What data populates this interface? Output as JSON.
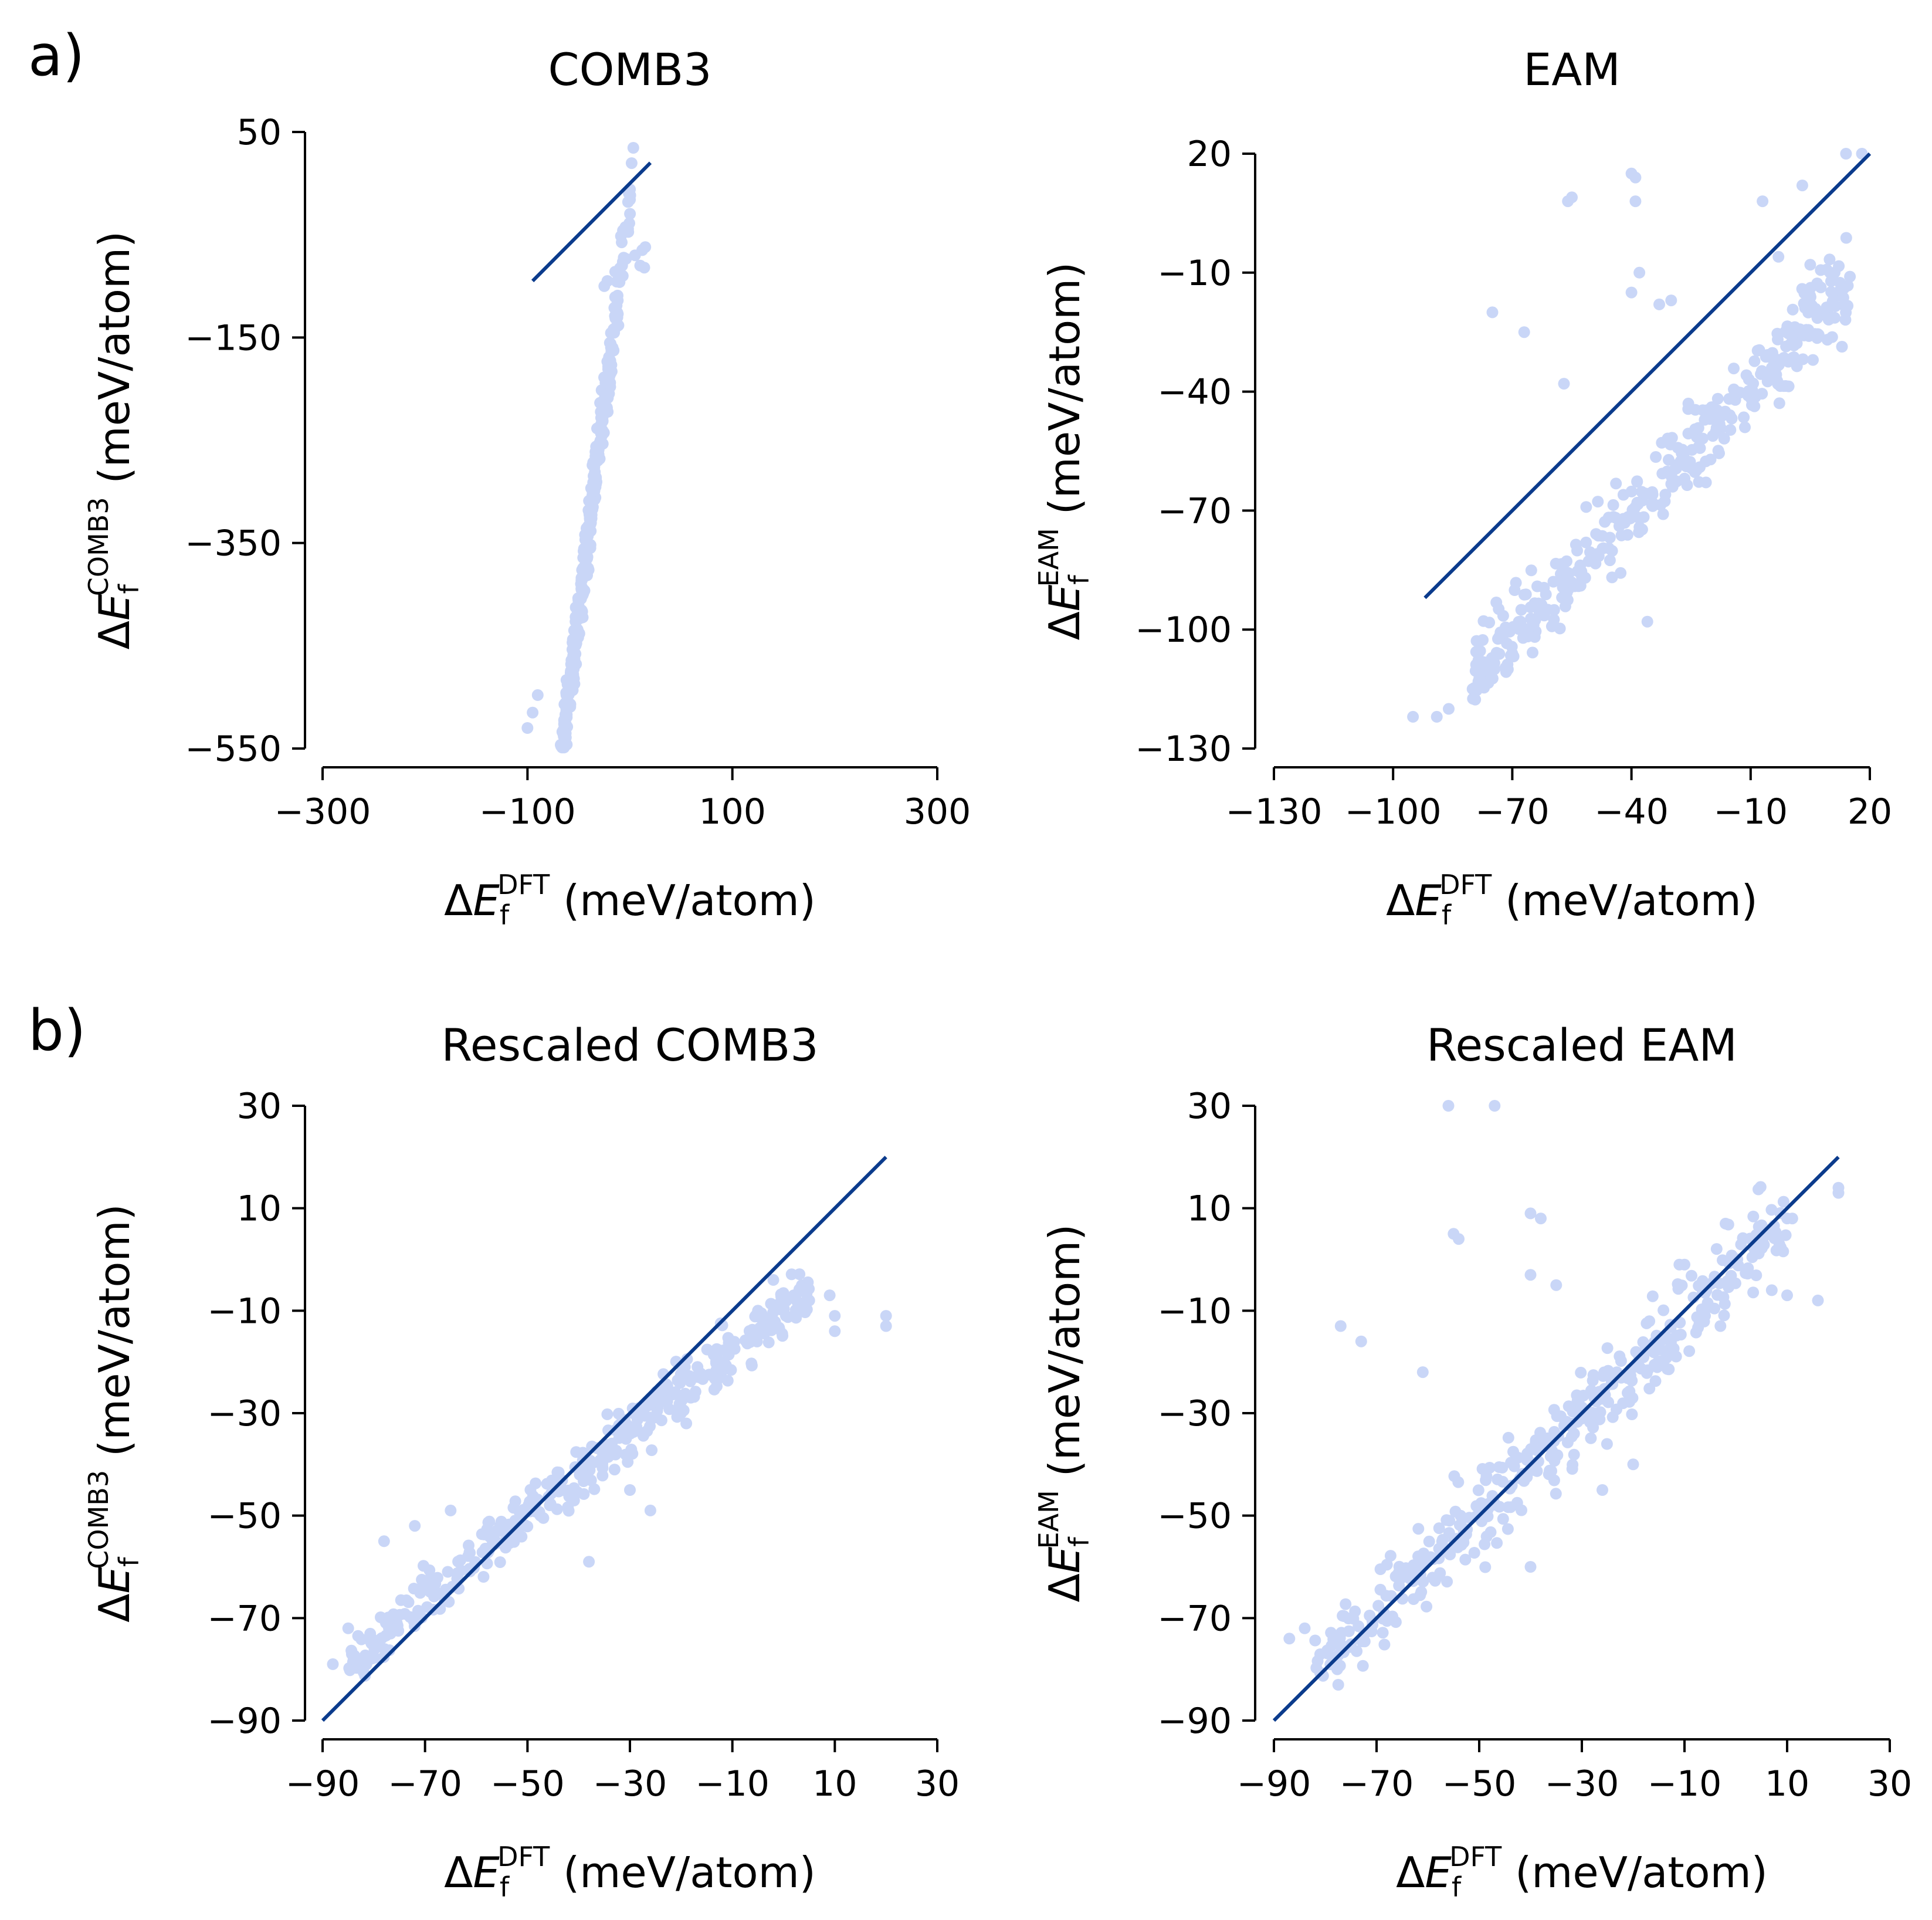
{
  "figure": {
    "panel_labels": [
      "a)",
      "b)"
    ]
  },
  "chart_data": [
    {
      "type": "scatter",
      "title": "COMB3",
      "xlabel": {
        "prefix": "ΔE",
        "sub": "f",
        "sup": "DFT",
        "unit": " (meV/atom)"
      },
      "ylabel": {
        "prefix": "ΔE",
        "sub": "f",
        "sup": "COMB3",
        "unit": " (meV/atom)"
      },
      "xlim": [
        -300,
        300
      ],
      "ylim": [
        -550,
        50
      ],
      "xticks": [
        -300,
        -100,
        100,
        300
      ],
      "yticks": [
        -550,
        -350,
        -150,
        50
      ],
      "colors": {
        "points": "#c9d6f7",
        "line": "#0b3b8c"
      },
      "line": {
        "x": [
          -95,
          20
        ],
        "y": [
          -95,
          20
        ]
      },
      "cluster": {
        "kind": "steep",
        "n": 420,
        "seed": 11,
        "xmin": -90,
        "xmax": 15,
        "center_x": -45,
        "slope": 8.2,
        "intercept": -10,
        "noise": 26
      },
      "points": [
        [
          -100,
          -530
        ],
        [
          -90,
          -498
        ],
        [
          -95,
          -515
        ],
        [
          -25,
          -100
        ],
        [
          -22,
          -95
        ],
        [
          10,
          -80
        ],
        [
          12,
          -65
        ],
        [
          15,
          -62
        ],
        [
          14,
          -82
        ],
        [
          5,
          -70
        ]
      ]
    },
    {
      "type": "scatter",
      "title": "EAM",
      "xlabel": {
        "prefix": "ΔE",
        "sub": "f",
        "sup": "DFT",
        "unit": " (meV/atom)"
      },
      "ylabel": {
        "prefix": "ΔE",
        "sub": "f",
        "sup": "EAM",
        "unit": " (meV/atom)"
      },
      "xlim": [
        -130,
        20
      ],
      "ylim": [
        -130,
        20
      ],
      "xticks": [
        -130,
        -100,
        -70,
        -40,
        -10,
        20
      ],
      "yticks": [
        -130,
        -100,
        -70,
        -40,
        -10,
        20
      ],
      "colors": {
        "points": "#c9d6f7",
        "line": "#0b3b8c"
      },
      "line": {
        "x": [
          -92,
          20
        ],
        "y": [
          -92,
          20
        ]
      },
      "cluster": {
        "kind": "linear",
        "n": 380,
        "seed": 23,
        "xmin": -80,
        "xmax": 15,
        "center_x": -45,
        "slope": 1.05,
        "intercept": -28,
        "noise": 9
      },
      "points": [
        [
          -40,
          15
        ],
        [
          -39,
          14
        ],
        [
          -39,
          8
        ],
        [
          -55,
          9
        ],
        [
          -56,
          8
        ],
        [
          -75,
          -20
        ],
        [
          -67,
          -25
        ],
        [
          -40,
          -15
        ],
        [
          -33,
          -18
        ],
        [
          -57,
          -38
        ],
        [
          -38,
          -10
        ],
        [
          -30,
          -17
        ],
        [
          -7,
          8
        ],
        [
          -3,
          -6
        ],
        [
          3,
          12
        ],
        [
          18,
          20
        ],
        [
          14,
          20
        ],
        [
          15,
          -11
        ],
        [
          10,
          -10
        ],
        [
          5,
          -8
        ],
        [
          -36,
          -98
        ],
        [
          -95,
          -122
        ],
        [
          -89,
          -122
        ],
        [
          -86,
          -120
        ],
        [
          -80,
          -115
        ]
      ]
    },
    {
      "type": "scatter",
      "title": "Rescaled COMB3",
      "xlabel": {
        "prefix": "ΔE",
        "sub": "f",
        "sup": "DFT",
        "unit": " (meV/atom)"
      },
      "ylabel": {
        "prefix": "ΔE",
        "sub": "f",
        "sup": "COMB3",
        "unit": " (meV/atom)"
      },
      "xlim": [
        -90,
        30
      ],
      "ylim": [
        -90,
        30
      ],
      "xticks": [
        -90,
        -70,
        -50,
        -30,
        -10,
        10,
        30
      ],
      "yticks": [
        -90,
        -70,
        -50,
        -30,
        -10,
        10,
        30
      ],
      "colors": {
        "points": "#c9d6f7",
        "line": "#0b3b8c"
      },
      "line": {
        "x": [
          -90,
          20
        ],
        "y": [
          -90,
          20
        ]
      },
      "cluster": {
        "kind": "linear",
        "n": 400,
        "seed": 37,
        "xmin": -85,
        "xmax": 5,
        "center_x": -45,
        "slope": 0.82,
        "intercept": -9,
        "noise": 4.5
      },
      "points": [
        [
          -88,
          -79
        ],
        [
          -85,
          -72
        ],
        [
          -78,
          -55
        ],
        [
          -72,
          -52
        ],
        [
          -65,
          -49
        ],
        [
          -20,
          -30
        ],
        [
          -19,
          -32
        ],
        [
          -38,
          -59
        ],
        [
          -33,
          -41
        ],
        [
          -30,
          -45
        ],
        [
          -26,
          -49
        ],
        [
          -5,
          -10
        ],
        [
          -1,
          -9
        ],
        [
          2,
          -7
        ],
        [
          5,
          -8
        ],
        [
          9,
          -7
        ],
        [
          10,
          -11
        ],
        [
          10,
          -14
        ],
        [
          20,
          -11
        ],
        [
          20,
          -13
        ],
        [
          -2,
          -4
        ]
      ]
    },
    {
      "type": "scatter",
      "title": "Rescaled EAM",
      "xlabel": {
        "prefix": "ΔE",
        "sub": "f",
        "sup": "DFT",
        "unit": " (meV/atom)"
      },
      "ylabel": {
        "prefix": "ΔE",
        "sub": "f",
        "sup": "EAM",
        "unit": " (meV/atom)"
      },
      "xlim": [
        -90,
        30
      ],
      "ylim": [
        -90,
        30
      ],
      "xticks": [
        -90,
        -70,
        -50,
        -30,
        -10,
        10,
        30
      ],
      "yticks": [
        -90,
        -70,
        -50,
        -30,
        -10,
        10,
        30
      ],
      "colors": {
        "points": "#c9d6f7",
        "line": "#0b3b8c"
      },
      "line": {
        "x": [
          -90,
          20
        ],
        "y": [
          -90,
          20
        ]
      },
      "cluster": {
        "kind": "linear",
        "n": 400,
        "seed": 51,
        "xmin": -82,
        "xmax": 10,
        "center_x": -45,
        "slope": 0.95,
        "intercept": -2,
        "noise": 7
      },
      "points": [
        [
          -47,
          30
        ],
        [
          -56,
          30
        ],
        [
          -40,
          9
        ],
        [
          -38,
          8
        ],
        [
          -54,
          4
        ],
        [
          -55,
          5
        ],
        [
          -40,
          -3
        ],
        [
          -35,
          -5
        ],
        [
          -77,
          -13
        ],
        [
          -73,
          -16
        ],
        [
          -61,
          -22
        ],
        [
          -20,
          -40
        ],
        [
          -26,
          -45
        ],
        [
          -40,
          -60
        ],
        [
          -87,
          -74
        ],
        [
          -84,
          -72
        ],
        [
          -2,
          7
        ],
        [
          -10,
          -1
        ],
        [
          -11,
          -1
        ],
        [
          -3,
          -13
        ],
        [
          -6,
          -11
        ],
        [
          10,
          8
        ],
        [
          11,
          8
        ],
        [
          20,
          13
        ],
        [
          20,
          14
        ],
        [
          16,
          -8
        ],
        [
          10,
          -7
        ],
        [
          7,
          -6
        ]
      ]
    }
  ]
}
